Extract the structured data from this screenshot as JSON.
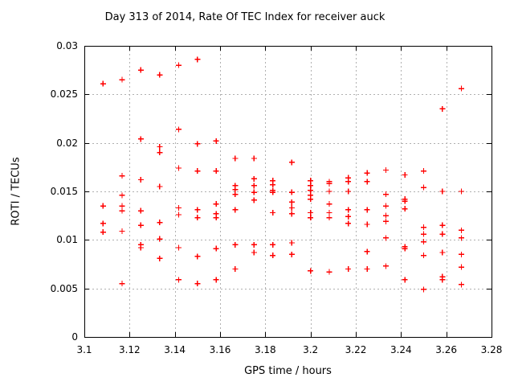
{
  "chart_data": {
    "type": "scatter",
    "title": "Day 313 of 2014, Rate Of TEC Index for receiver auck",
    "xlabel": "GPS time / hours",
    "ylabel": "ROTI / TECUs",
    "xlim": [
      3.1,
      3.28
    ],
    "ylim": [
      0,
      0.03
    ],
    "xticks": [
      3.1,
      3.12,
      3.14,
      3.16,
      3.18,
      3.2,
      3.22,
      3.24,
      3.26,
      3.28
    ],
    "xtick_labels": [
      "3.1",
      "3.12",
      "3.14",
      "3.16",
      "3.18",
      "3.2",
      "3.22",
      "3.24",
      "3.26",
      "3.28"
    ],
    "yticks": [
      0,
      0.005,
      0.01,
      0.015,
      0.02,
      0.025,
      0.03
    ],
    "ytick_labels": [
      "0",
      "0.005",
      "0.01",
      "0.015",
      "0.02",
      "0.025",
      "0.03"
    ],
    "grid": true,
    "legend": "none",
    "marker": "plus",
    "marker_color": "#ff0000",
    "grid_color": "#b0b0b0",
    "border_color": "#000000",
    "series": [
      {
        "name": "ROTI",
        "points": [
          [
            3.1083,
            0.0261
          ],
          [
            3.1083,
            0.0135
          ],
          [
            3.1083,
            0.0117
          ],
          [
            3.1083,
            0.0108
          ],
          [
            3.1167,
            0.0265
          ],
          [
            3.1167,
            0.0166
          ],
          [
            3.1167,
            0.0146
          ],
          [
            3.1167,
            0.0135
          ],
          [
            3.1167,
            0.013
          ],
          [
            3.1167,
            0.0109
          ],
          [
            3.1167,
            0.0055
          ],
          [
            3.125,
            0.0275
          ],
          [
            3.125,
            0.0204
          ],
          [
            3.125,
            0.0162
          ],
          [
            3.125,
            0.013
          ],
          [
            3.125,
            0.0115
          ],
          [
            3.125,
            0.0095
          ],
          [
            3.125,
            0.0092
          ],
          [
            3.1333,
            0.027
          ],
          [
            3.1333,
            0.0196
          ],
          [
            3.1333,
            0.019
          ],
          [
            3.1333,
            0.0155
          ],
          [
            3.1333,
            0.0118
          ],
          [
            3.1333,
            0.0101
          ],
          [
            3.1333,
            0.0081
          ],
          [
            3.1417,
            0.028
          ],
          [
            3.1417,
            0.0214
          ],
          [
            3.1417,
            0.0174
          ],
          [
            3.1417,
            0.0133
          ],
          [
            3.1417,
            0.0126
          ],
          [
            3.1417,
            0.0092
          ],
          [
            3.1417,
            0.0059
          ],
          [
            3.15,
            0.0286
          ],
          [
            3.15,
            0.0199
          ],
          [
            3.15,
            0.0171
          ],
          [
            3.15,
            0.0131
          ],
          [
            3.15,
            0.0123
          ],
          [
            3.15,
            0.0083
          ],
          [
            3.15,
            0.0055
          ],
          [
            3.1583,
            0.0202
          ],
          [
            3.1583,
            0.0171
          ],
          [
            3.1583,
            0.0137
          ],
          [
            3.1583,
            0.0127
          ],
          [
            3.1583,
            0.0123
          ],
          [
            3.1583,
            0.0091
          ],
          [
            3.1583,
            0.0059
          ],
          [
            3.1667,
            0.0184
          ],
          [
            3.1667,
            0.0156
          ],
          [
            3.1667,
            0.0152
          ],
          [
            3.1667,
            0.0147
          ],
          [
            3.1667,
            0.0131
          ],
          [
            3.1667,
            0.0095
          ],
          [
            3.1667,
            0.007
          ],
          [
            3.175,
            0.0184
          ],
          [
            3.175,
            0.0163
          ],
          [
            3.175,
            0.0156
          ],
          [
            3.175,
            0.0149
          ],
          [
            3.175,
            0.0141
          ],
          [
            3.175,
            0.0095
          ],
          [
            3.175,
            0.0087
          ],
          [
            3.1833,
            0.0161
          ],
          [
            3.1833,
            0.0157
          ],
          [
            3.1833,
            0.0151
          ],
          [
            3.1833,
            0.0149
          ],
          [
            3.1833,
            0.0128
          ],
          [
            3.1833,
            0.0095
          ],
          [
            3.1833,
            0.0084
          ],
          [
            3.1917,
            0.018
          ],
          [
            3.1917,
            0.0149
          ],
          [
            3.1917,
            0.0139
          ],
          [
            3.1917,
            0.0133
          ],
          [
            3.1917,
            0.0127
          ],
          [
            3.1917,
            0.0097
          ],
          [
            3.1917,
            0.0085
          ],
          [
            3.2,
            0.0161
          ],
          [
            3.2,
            0.0156
          ],
          [
            3.2,
            0.0151
          ],
          [
            3.2,
            0.0146
          ],
          [
            3.2,
            0.0142
          ],
          [
            3.2,
            0.0128
          ],
          [
            3.2,
            0.0123
          ],
          [
            3.2,
            0.0068
          ],
          [
            3.2083,
            0.016
          ],
          [
            3.2083,
            0.0158
          ],
          [
            3.2083,
            0.015
          ],
          [
            3.2083,
            0.0137
          ],
          [
            3.2083,
            0.0128
          ],
          [
            3.2083,
            0.0123
          ],
          [
            3.2083,
            0.0067
          ],
          [
            3.2167,
            0.0164
          ],
          [
            3.2167,
            0.016
          ],
          [
            3.2167,
            0.015
          ],
          [
            3.2167,
            0.0131
          ],
          [
            3.2167,
            0.0124
          ],
          [
            3.2167,
            0.0117
          ],
          [
            3.2167,
            0.007
          ],
          [
            3.225,
            0.0169
          ],
          [
            3.225,
            0.016
          ],
          [
            3.225,
            0.0131
          ],
          [
            3.225,
            0.0116
          ],
          [
            3.225,
            0.0088
          ],
          [
            3.225,
            0.007
          ],
          [
            3.2333,
            0.0172
          ],
          [
            3.2333,
            0.0147
          ],
          [
            3.2333,
            0.0135
          ],
          [
            3.2333,
            0.0125
          ],
          [
            3.2333,
            0.0119
          ],
          [
            3.2333,
            0.0102
          ],
          [
            3.2333,
            0.0073
          ],
          [
            3.2417,
            0.0167
          ],
          [
            3.2417,
            0.0142
          ],
          [
            3.2417,
            0.014
          ],
          [
            3.2417,
            0.0132
          ],
          [
            3.2417,
            0.0093
          ],
          [
            3.2417,
            0.0091
          ],
          [
            3.2417,
            0.0059
          ],
          [
            3.25,
            0.0171
          ],
          [
            3.25,
            0.0154
          ],
          [
            3.25,
            0.0113
          ],
          [
            3.25,
            0.0106
          ],
          [
            3.25,
            0.0098
          ],
          [
            3.25,
            0.0084
          ],
          [
            3.25,
            0.0049
          ],
          [
            3.2583,
            0.0235
          ],
          [
            3.2583,
            0.015
          ],
          [
            3.2583,
            0.0115
          ],
          [
            3.2583,
            0.0106
          ],
          [
            3.2583,
            0.0087
          ],
          [
            3.2583,
            0.0062
          ],
          [
            3.2583,
            0.0059
          ],
          [
            3.2667,
            0.0256
          ],
          [
            3.2667,
            0.015
          ],
          [
            3.2667,
            0.011
          ],
          [
            3.2667,
            0.0102
          ],
          [
            3.2667,
            0.0085
          ],
          [
            3.2667,
            0.0072
          ],
          [
            3.2667,
            0.0054
          ]
        ]
      }
    ]
  }
}
